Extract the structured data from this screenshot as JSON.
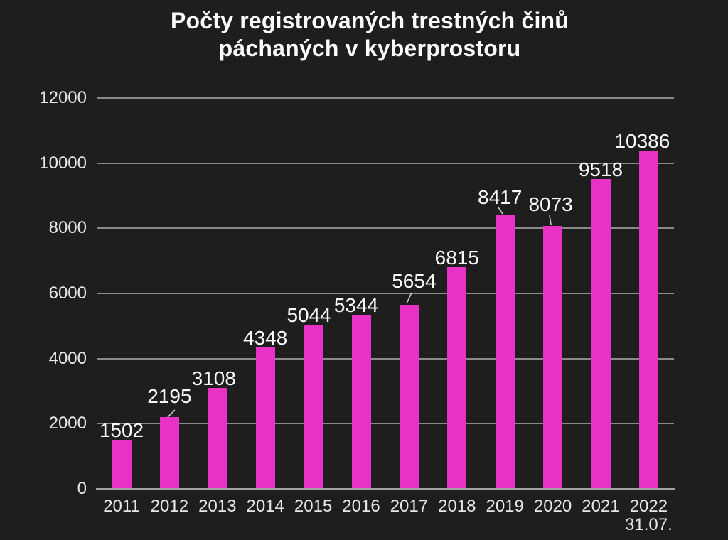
{
  "chart_data": {
    "type": "bar",
    "title_lines": [
      "Počty registrovaných trestných činů",
      "páchaných v kyberprostoru"
    ],
    "categories": [
      "2011",
      "2012",
      "2013",
      "2014",
      "2015",
      "2016",
      "2017",
      "2018",
      "2019",
      "2020",
      "2021",
      "2022"
    ],
    "category_note": {
      "index": 11,
      "text": "31.07."
    },
    "values": [
      1502,
      2195,
      3108,
      4348,
      5044,
      5344,
      5654,
      6815,
      8417,
      8073,
      9518,
      10386
    ],
    "data_labels": [
      "1502",
      "2195",
      "3108",
      "4348",
      "5044",
      "5344",
      "5654",
      "6815",
      "8417",
      "8073",
      "9518",
      "10386"
    ],
    "xlabel": "",
    "ylabel": "",
    "ylim": [
      0,
      12000
    ],
    "yticks": [
      0,
      2000,
      4000,
      6000,
      8000,
      10000,
      12000
    ],
    "grid": true,
    "legend": "none",
    "callout_label_indices": [
      1,
      6,
      8,
      9
    ],
    "bar_color": "#e832c6",
    "gridline_color": "#8a8a8a",
    "axis_line_color": "#a2a2a2",
    "text_color": "#e6e6e6",
    "data_label_color": "#fafafa",
    "title_color": "#fcfcfc",
    "background_color": "#1e1e1f"
  }
}
